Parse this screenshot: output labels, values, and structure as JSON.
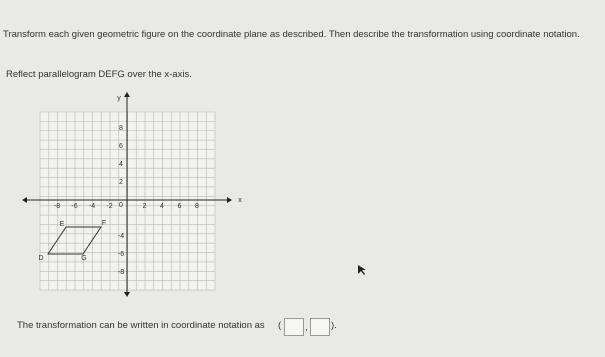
{
  "instruction": "Transform each given geometric figure on the coordinate plane as described. Then describe the transformation using coordinate notation.",
  "prompt": "Reflect parallelogram DEFG over the x-axis.",
  "graph": {
    "x_axis_label": "x",
    "y_axis_label": "y",
    "origin_label": "0",
    "x_tick_labels": [
      -8,
      -6,
      -4,
      -2,
      2,
      4,
      6,
      8
    ],
    "y_tick_labels": [
      8,
      6,
      4,
      2,
      -4,
      -6,
      -8
    ],
    "vertices": [
      "D",
      "E",
      "F",
      "G"
    ]
  },
  "answer": {
    "text": "The transformation can be written in coordinate notation as",
    "open": "(",
    "comma": ",",
    "close": ")."
  }
}
